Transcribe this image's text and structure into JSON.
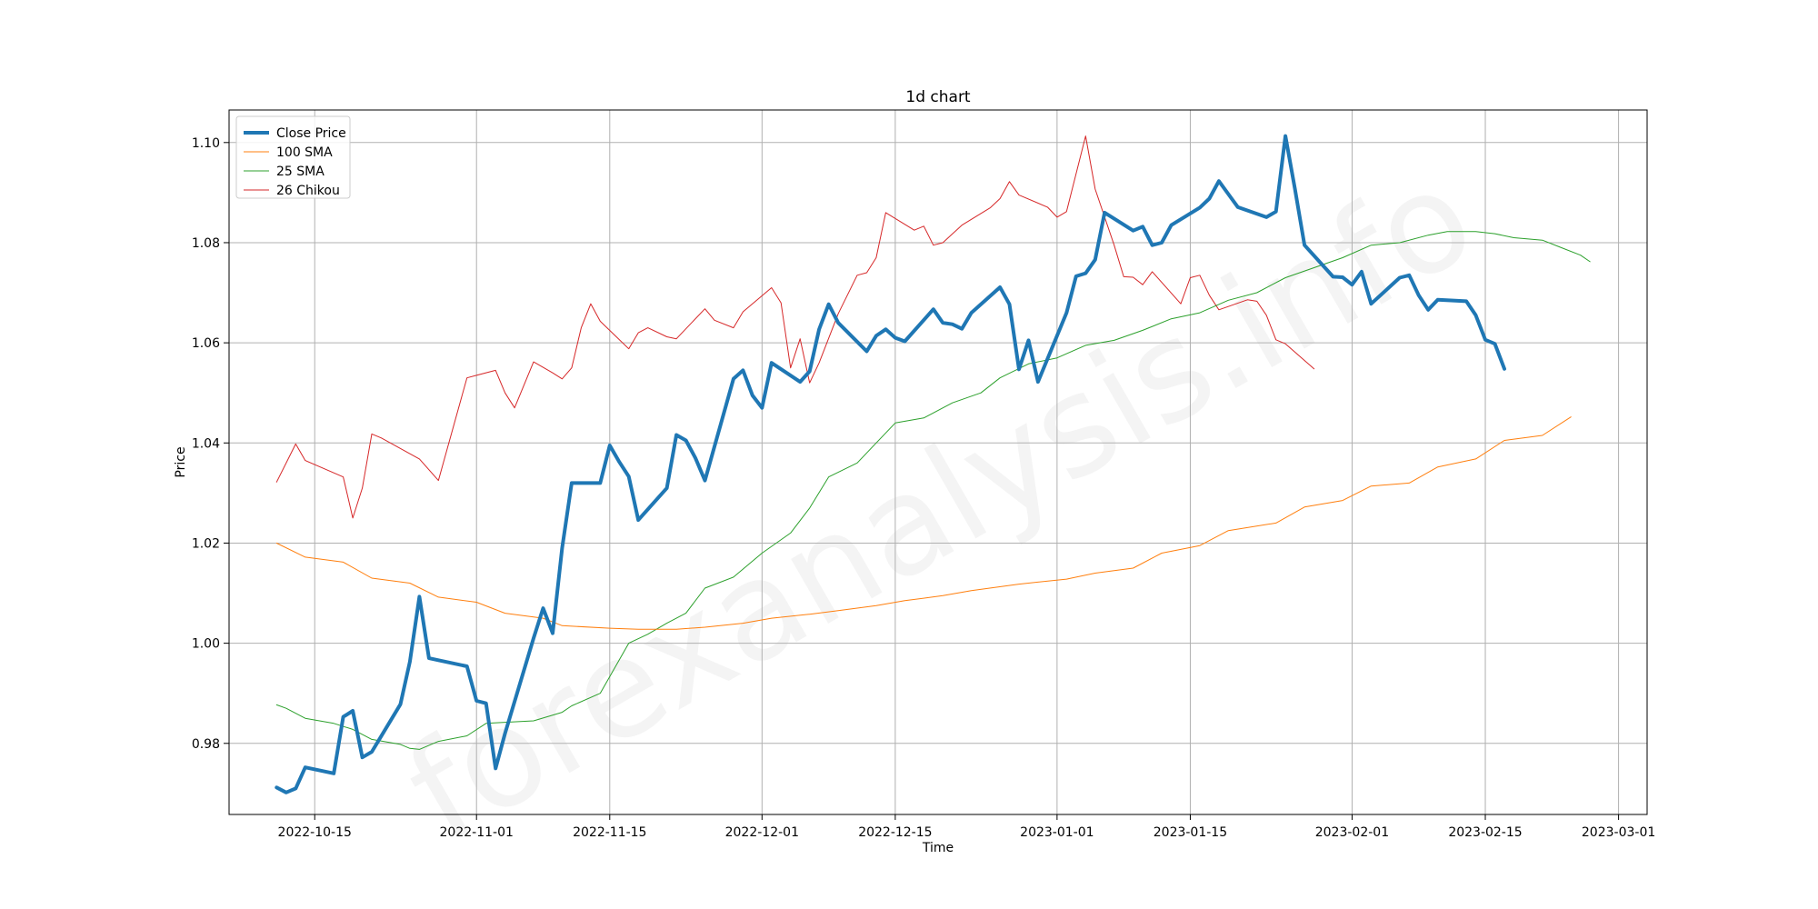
{
  "chart_data": {
    "type": "line",
    "title": "1d chart",
    "xlabel": "Time",
    "ylabel": "Price",
    "watermark": "forexanalysis.info",
    "x_axis": {
      "type": "date",
      "range": [
        "2022-10-06",
        "2023-03-04"
      ],
      "ticks": [
        "2022-10-15",
        "2022-11-01",
        "2022-11-15",
        "2022-12-01",
        "2022-12-15",
        "2023-01-01",
        "2023-01-15",
        "2023-02-01",
        "2023-02-15",
        "2023-03-01"
      ]
    },
    "y_axis": {
      "range": [
        0.9658,
        1.1065
      ],
      "ticks": [
        0.98,
        1.0,
        1.02,
        1.04,
        1.06,
        1.08,
        1.1
      ],
      "tick_labels": [
        "0.98",
        "1.00",
        "1.02",
        "1.04",
        "1.06",
        "1.08",
        "1.10"
      ]
    },
    "grid": true,
    "legend_position": "top-left",
    "series": [
      {
        "name": "Close Price",
        "color": "#1f77b4",
        "width": 4,
        "points": [
          [
            "2022-10-11",
            0.9712
          ],
          [
            "2022-10-12",
            0.9702
          ],
          [
            "2022-10-13",
            0.971
          ],
          [
            "2022-10-14",
            0.9752
          ],
          [
            "2022-10-17",
            0.974
          ],
          [
            "2022-10-18",
            0.9853
          ],
          [
            "2022-10-19",
            0.9865
          ],
          [
            "2022-10-20",
            0.9772
          ],
          [
            "2022-10-21",
            0.9783
          ],
          [
            "2022-10-24",
            0.9878
          ],
          [
            "2022-10-25",
            0.9963
          ],
          [
            "2022-10-26",
            1.0093
          ],
          [
            "2022-10-27",
            0.997
          ],
          [
            "2022-10-28",
            0.9966
          ],
          [
            "2022-10-31",
            0.9954
          ],
          [
            "2022-11-01",
            0.9885
          ],
          [
            "2022-11-02",
            0.988
          ],
          [
            "2022-11-03",
            0.975
          ],
          [
            "2022-11-04",
            0.982
          ],
          [
            "2022-11-07",
            1.001
          ],
          [
            "2022-11-08",
            1.007
          ],
          [
            "2022-11-09",
            1.002
          ],
          [
            "2022-11-10",
            1.019
          ],
          [
            "2022-11-11",
            1.032
          ],
          [
            "2022-11-14",
            1.032
          ],
          [
            "2022-11-15",
            1.0395
          ],
          [
            "2022-11-16",
            1.0362
          ],
          [
            "2022-11-17",
            1.0333
          ],
          [
            "2022-11-18",
            1.0246
          ],
          [
            "2022-11-21",
            1.031
          ],
          [
            "2022-11-22",
            1.0416
          ],
          [
            "2022-11-23",
            1.0405
          ],
          [
            "2022-11-24",
            1.037
          ],
          [
            "2022-11-25",
            1.0325
          ],
          [
            "2022-11-28",
            1.0528
          ],
          [
            "2022-11-29",
            1.0545
          ],
          [
            "2022-11-30",
            1.0495
          ],
          [
            "2022-12-01",
            1.047
          ],
          [
            "2022-12-02",
            1.056
          ],
          [
            "2022-12-05",
            1.0522
          ],
          [
            "2022-12-06",
            1.0543
          ],
          [
            "2022-12-07",
            1.0627
          ],
          [
            "2022-12-08",
            1.0677
          ],
          [
            "2022-12-09",
            1.064
          ],
          [
            "2022-12-12",
            1.0583
          ],
          [
            "2022-12-13",
            1.0614
          ],
          [
            "2022-12-14",
            1.0627
          ],
          [
            "2022-12-15",
            1.061
          ],
          [
            "2022-12-16",
            1.0603
          ],
          [
            "2022-12-19",
            1.0667
          ],
          [
            "2022-12-20",
            1.064
          ],
          [
            "2022-12-21",
            1.0637
          ],
          [
            "2022-12-22",
            1.0628
          ],
          [
            "2022-12-23",
            1.066
          ],
          [
            "2022-12-26",
            1.0711
          ],
          [
            "2022-12-27",
            1.0677
          ],
          [
            "2022-12-28",
            1.0547
          ],
          [
            "2022-12-29",
            1.0605
          ],
          [
            "2022-12-30",
            1.0522
          ],
          [
            "2023-01-02",
            1.066
          ],
          [
            "2023-01-03",
            1.0733
          ],
          [
            "2023-01-04",
            1.0739
          ],
          [
            "2023-01-05",
            1.0766
          ],
          [
            "2023-01-06",
            1.086
          ],
          [
            "2023-01-09",
            1.0824
          ],
          [
            "2023-01-10",
            1.0832
          ],
          [
            "2023-01-11",
            1.0795
          ],
          [
            "2023-01-12",
            1.08
          ],
          [
            "2023-01-13",
            1.0835
          ],
          [
            "2023-01-16",
            1.087
          ],
          [
            "2023-01-17",
            1.0888
          ],
          [
            "2023-01-18",
            1.0923
          ],
          [
            "2023-01-19",
            1.0897
          ],
          [
            "2023-01-20",
            1.0871
          ],
          [
            "2023-01-23",
            1.0851
          ],
          [
            "2023-01-24",
            1.0862
          ],
          [
            "2023-01-25",
            1.1013
          ],
          [
            "2023-01-26",
            1.0907
          ],
          [
            "2023-01-27",
            1.0795
          ],
          [
            "2023-01-30",
            1.0732
          ],
          [
            "2023-01-31",
            1.0731
          ],
          [
            "2023-02-01",
            1.0716
          ],
          [
            "2023-02-02",
            1.0742
          ],
          [
            "2023-02-03",
            1.0678
          ],
          [
            "2023-02-06",
            1.073
          ],
          [
            "2023-02-07",
            1.0735
          ],
          [
            "2023-02-08",
            1.0695
          ],
          [
            "2023-02-09",
            1.0666
          ],
          [
            "2023-02-10",
            1.0686
          ],
          [
            "2023-02-13",
            1.0683
          ],
          [
            "2023-02-14",
            1.0655
          ],
          [
            "2023-02-15",
            1.0606
          ],
          [
            "2023-02-16",
            1.0598
          ],
          [
            "2023-02-17",
            1.0548
          ]
        ]
      },
      {
        "name": "100 SMA",
        "color": "#ff7f0e",
        "width": 1,
        "points": [
          [
            "2022-10-11",
            1.02
          ],
          [
            "2022-10-14",
            1.0172
          ],
          [
            "2022-10-18",
            1.0162
          ],
          [
            "2022-10-21",
            1.013
          ],
          [
            "2022-10-25",
            1.012
          ],
          [
            "2022-10-28",
            1.0092
          ],
          [
            "2022-11-01",
            1.0082
          ],
          [
            "2022-11-04",
            1.006
          ],
          [
            "2022-11-08",
            1.005
          ],
          [
            "2022-11-10",
            1.0035
          ],
          [
            "2022-11-15",
            1.003
          ],
          [
            "2022-11-18",
            1.0028
          ],
          [
            "2022-11-22",
            1.0028
          ],
          [
            "2022-11-25",
            1.0032
          ],
          [
            "2022-11-29",
            1.004
          ],
          [
            "2022-12-02",
            1.005
          ],
          [
            "2022-12-06",
            1.0058
          ],
          [
            "2022-12-09",
            1.0065
          ],
          [
            "2022-12-13",
            1.0075
          ],
          [
            "2022-12-16",
            1.0085
          ],
          [
            "2022-12-20",
            1.0095
          ],
          [
            "2022-12-23",
            1.0105
          ],
          [
            "2022-12-28",
            1.0118
          ],
          [
            "2023-01-02",
            1.0128
          ],
          [
            "2023-01-05",
            1.014
          ],
          [
            "2023-01-09",
            1.015
          ],
          [
            "2023-01-12",
            1.018
          ],
          [
            "2023-01-16",
            1.0195
          ],
          [
            "2023-01-19",
            1.0225
          ],
          [
            "2023-01-24",
            1.024
          ],
          [
            "2023-01-27",
            1.0272
          ],
          [
            "2023-01-31",
            1.0285
          ],
          [
            "2023-02-03",
            1.0314
          ],
          [
            "2023-02-07",
            1.032
          ],
          [
            "2023-02-10",
            1.0352
          ],
          [
            "2023-02-14",
            1.0368
          ],
          [
            "2023-02-17",
            1.0405
          ],
          [
            "2023-02-21",
            1.0415
          ],
          [
            "2023-02-24",
            1.0452
          ]
        ]
      },
      {
        "name": "25 SMA",
        "color": "#2ca02c",
        "width": 1,
        "points": [
          [
            "2022-10-11",
            0.9877
          ],
          [
            "2022-10-12",
            0.987
          ],
          [
            "2022-10-14",
            0.985
          ],
          [
            "2022-10-17",
            0.984
          ],
          [
            "2022-10-19",
            0.9828
          ],
          [
            "2022-10-21",
            0.9808
          ],
          [
            "2022-10-24",
            0.9798
          ],
          [
            "2022-10-25",
            0.979
          ],
          [
            "2022-10-26",
            0.9788
          ],
          [
            "2022-10-28",
            0.9804
          ],
          [
            "2022-10-31",
            0.9815
          ],
          [
            "2022-11-02",
            0.984
          ],
          [
            "2022-11-04",
            0.9842
          ],
          [
            "2022-11-07",
            0.9845
          ],
          [
            "2022-11-10",
            0.9862
          ],
          [
            "2022-11-11",
            0.9875
          ],
          [
            "2022-11-14",
            0.99
          ],
          [
            "2022-11-17",
            1.0
          ],
          [
            "2022-11-19",
            1.0018
          ],
          [
            "2022-11-21",
            1.004
          ],
          [
            "2022-11-23",
            1.006
          ],
          [
            "2022-11-25",
            1.011
          ],
          [
            "2022-11-28",
            1.0132
          ],
          [
            "2022-12-01",
            1.018
          ],
          [
            "2022-12-04",
            1.022
          ],
          [
            "2022-12-06",
            1.027
          ],
          [
            "2022-12-08",
            1.0332
          ],
          [
            "2022-12-11",
            1.036
          ],
          [
            "2022-12-13",
            1.04
          ],
          [
            "2022-12-15",
            1.044
          ],
          [
            "2022-12-18",
            1.045
          ],
          [
            "2022-12-21",
            1.048
          ],
          [
            "2022-12-24",
            1.05
          ],
          [
            "2022-12-26",
            1.053
          ],
          [
            "2022-12-29",
            1.0558
          ],
          [
            "2023-01-01",
            1.057
          ],
          [
            "2023-01-04",
            1.0595
          ],
          [
            "2023-01-07",
            1.0605
          ],
          [
            "2023-01-10",
            1.0625
          ],
          [
            "2023-01-13",
            1.0648
          ],
          [
            "2023-01-16",
            1.066
          ],
          [
            "2023-01-19",
            1.0685
          ],
          [
            "2023-01-22",
            1.07
          ],
          [
            "2023-01-25",
            1.073
          ],
          [
            "2023-01-28",
            1.075
          ],
          [
            "2023-01-31",
            1.077
          ],
          [
            "2023-02-03",
            1.0795
          ],
          [
            "2023-02-06",
            1.08
          ],
          [
            "2023-02-09",
            1.0815
          ],
          [
            "2023-02-11",
            1.0822
          ],
          [
            "2023-02-14",
            1.0822
          ],
          [
            "2023-02-16",
            1.0818
          ],
          [
            "2023-02-18",
            1.081
          ],
          [
            "2023-02-21",
            1.0805
          ],
          [
            "2023-02-23",
            1.079
          ],
          [
            "2023-02-25",
            1.0775
          ],
          [
            "2023-02-26",
            1.0762
          ]
        ]
      },
      {
        "name": "26 Chikou",
        "color": "#d62728",
        "width": 1,
        "points": [
          [
            "2022-10-11",
            1.0322
          ],
          [
            "2022-10-13",
            1.0398
          ],
          [
            "2022-10-14",
            1.0365
          ],
          [
            "2022-10-18",
            1.0332
          ],
          [
            "2022-10-19",
            1.025
          ],
          [
            "2022-10-20",
            1.031
          ],
          [
            "2022-10-21",
            1.0418
          ],
          [
            "2022-10-22",
            1.041
          ],
          [
            "2022-10-26",
            1.0368
          ],
          [
            "2022-10-28",
            1.0325
          ],
          [
            "2022-10-31",
            1.053
          ],
          [
            "2022-11-01",
            1.0535
          ],
          [
            "2022-11-03",
            1.0545
          ],
          [
            "2022-11-04",
            1.05
          ],
          [
            "2022-11-05",
            1.047
          ],
          [
            "2022-11-07",
            1.0562
          ],
          [
            "2022-11-09",
            1.054
          ],
          [
            "2022-11-10",
            1.0528
          ],
          [
            "2022-11-11",
            1.055
          ],
          [
            "2022-11-12",
            1.063
          ],
          [
            "2022-11-13",
            1.0678
          ],
          [
            "2022-11-14",
            1.0643
          ],
          [
            "2022-11-17",
            1.0588
          ],
          [
            "2022-11-18",
            1.062
          ],
          [
            "2022-11-19",
            1.063
          ],
          [
            "2022-11-21",
            1.0612
          ],
          [
            "2022-11-22",
            1.0608
          ],
          [
            "2022-11-25",
            1.0668
          ],
          [
            "2022-11-26",
            1.0645
          ],
          [
            "2022-11-28",
            1.063
          ],
          [
            "2022-11-29",
            1.0662
          ],
          [
            "2022-12-02",
            1.071
          ],
          [
            "2022-12-03",
            1.068
          ],
          [
            "2022-12-04",
            1.055
          ],
          [
            "2022-12-05",
            1.0608
          ],
          [
            "2022-12-06",
            1.052
          ],
          [
            "2022-12-07",
            1.056
          ],
          [
            "2022-12-09",
            1.0658
          ],
          [
            "2022-12-11",
            1.0735
          ],
          [
            "2022-12-12",
            1.074
          ],
          [
            "2022-12-13",
            1.077
          ],
          [
            "2022-12-14",
            1.086
          ],
          [
            "2022-12-17",
            1.0825
          ],
          [
            "2022-12-18",
            1.0833
          ],
          [
            "2022-12-19",
            1.0795
          ],
          [
            "2022-12-20",
            1.08
          ],
          [
            "2022-12-22",
            1.0835
          ],
          [
            "2022-12-25",
            1.087
          ],
          [
            "2022-12-26",
            1.0888
          ],
          [
            "2022-12-27",
            1.0922
          ],
          [
            "2022-12-28",
            1.0895
          ],
          [
            "2022-12-31",
            1.0871
          ],
          [
            "2023-01-01",
            1.0851
          ],
          [
            "2023-01-02",
            1.0862
          ],
          [
            "2023-01-04",
            1.1013
          ],
          [
            "2023-01-05",
            1.0907
          ],
          [
            "2023-01-07",
            1.0795
          ],
          [
            "2023-01-08",
            1.0732
          ],
          [
            "2023-01-09",
            1.0731
          ],
          [
            "2023-01-10",
            1.0716
          ],
          [
            "2023-01-11",
            1.0742
          ],
          [
            "2023-01-14",
            1.0678
          ],
          [
            "2023-01-15",
            1.073
          ],
          [
            "2023-01-16",
            1.0735
          ],
          [
            "2023-01-17",
            1.0695
          ],
          [
            "2023-01-18",
            1.0666
          ],
          [
            "2023-01-21",
            1.0686
          ],
          [
            "2023-01-22",
            1.0683
          ],
          [
            "2023-01-23",
            1.0655
          ],
          [
            "2023-01-24",
            1.0606
          ],
          [
            "2023-01-25",
            1.0598
          ],
          [
            "2023-01-28",
            1.0548
          ]
        ]
      }
    ]
  }
}
